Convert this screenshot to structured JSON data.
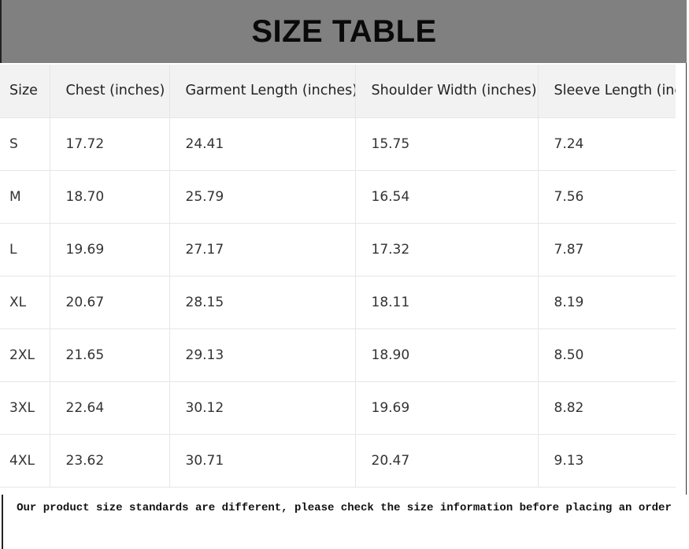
{
  "title": "SIZE TABLE",
  "table": {
    "headers": [
      "Size",
      "Chest (inches)",
      "Garment Length (inches)",
      "Shoulder Width (inches)",
      "Sleeve Length (inches)"
    ],
    "rows": [
      [
        "S",
        "17.72",
        "24.41",
        "15.75",
        "7.24"
      ],
      [
        "M",
        "18.70",
        "25.79",
        "16.54",
        "7.56"
      ],
      [
        "L",
        "19.69",
        "27.17",
        "17.32",
        "7.87"
      ],
      [
        "XL",
        "20.67",
        "28.15",
        "18.11",
        "8.19"
      ],
      [
        "2XL",
        "21.65",
        "29.13",
        "18.90",
        "8.50"
      ],
      [
        "3XL",
        "22.64",
        "30.12",
        "19.69",
        "8.82"
      ],
      [
        "4XL",
        "23.62",
        "30.71",
        "20.47",
        "9.13"
      ]
    ]
  },
  "note": "Our product size standards are different, please check the size information before placing an order"
}
